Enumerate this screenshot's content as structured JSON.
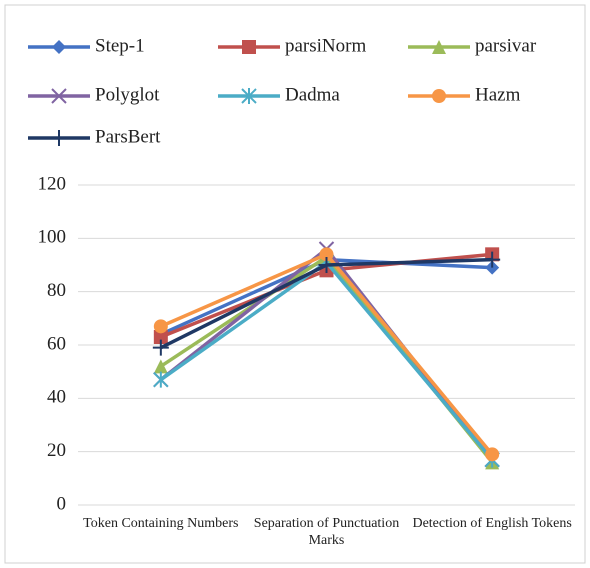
{
  "chart_data": {
    "type": "line",
    "categories": [
      "Token Containing Numbers",
      "Separation of Punctuation Marks",
      "Detection of English Tokens"
    ],
    "series": [
      {
        "name": "Step-1",
        "color": "#4472c4",
        "marker": "diamond",
        "values": [
          64,
          92,
          89
        ]
      },
      {
        "name": "parsiNorm",
        "color": "#c0504d",
        "marker": "square",
        "values": [
          63,
          88,
          94
        ]
      },
      {
        "name": "parsivar",
        "color": "#9bbb59",
        "marker": "triangle",
        "values": [
          52,
          93,
          16
        ]
      },
      {
        "name": "Polyglot",
        "color": "#8064a2",
        "marker": "x",
        "values": [
          47,
          96,
          17
        ]
      },
      {
        "name": "Dadma",
        "color": "#4bacc6",
        "marker": "star",
        "values": [
          47,
          91,
          17
        ]
      },
      {
        "name": "Hazm",
        "color": "#f79646",
        "marker": "circle",
        "values": [
          67,
          94,
          19
        ]
      },
      {
        "name": "ParsBert",
        "color": "#1f3864",
        "marker": "plus",
        "values": [
          59,
          90,
          92
        ]
      }
    ],
    "ylim": [
      0,
      120
    ],
    "yticks": [
      0,
      20,
      40,
      60,
      80,
      100,
      120
    ],
    "grid": true,
    "legend": "top"
  }
}
